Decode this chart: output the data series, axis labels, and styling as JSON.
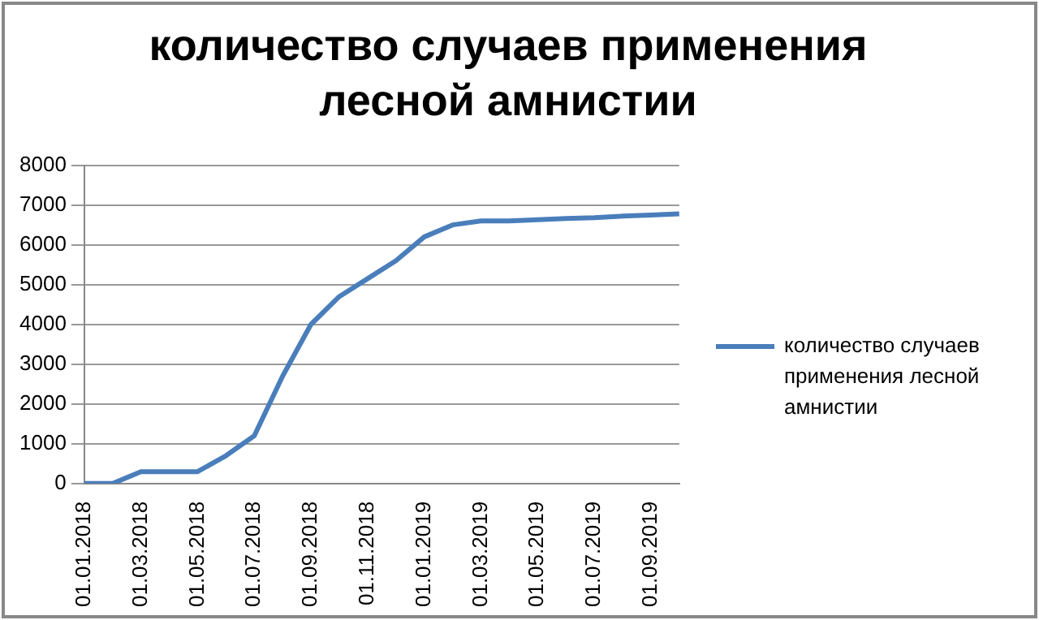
{
  "chart_data": {
    "type": "line",
    "title": "количество случаев применения лесной амнистии",
    "categories": [
      "01.01.2018",
      null,
      "01.03.2018",
      null,
      "01.05.2018",
      null,
      "01.07.2018",
      null,
      "01.09.2018",
      null,
      "01.11.2018",
      null,
      "01.01.2019",
      null,
      "01.03.2019",
      null,
      "01.05.2019",
      null,
      "01.07.2019",
      null,
      "01.09.2019",
      null
    ],
    "series": [
      {
        "name": "количество случаев применения лесной амнистии",
        "color": "#4a7ebb",
        "values": [
          0,
          0,
          300,
          300,
          300,
          700,
          1200,
          2700,
          4000,
          4700,
          5150,
          5600,
          6200,
          6500,
          6600,
          6600,
          6630,
          6660,
          6680,
          6720,
          6750,
          6780
        ]
      }
    ],
    "ylim": [
      0,
      8000
    ],
    "yticks": [
      0,
      1000,
      2000,
      3000,
      4000,
      5000,
      6000,
      7000,
      8000
    ],
    "grid": "y",
    "legend": "right",
    "marker": "none",
    "line_style": "solid"
  }
}
